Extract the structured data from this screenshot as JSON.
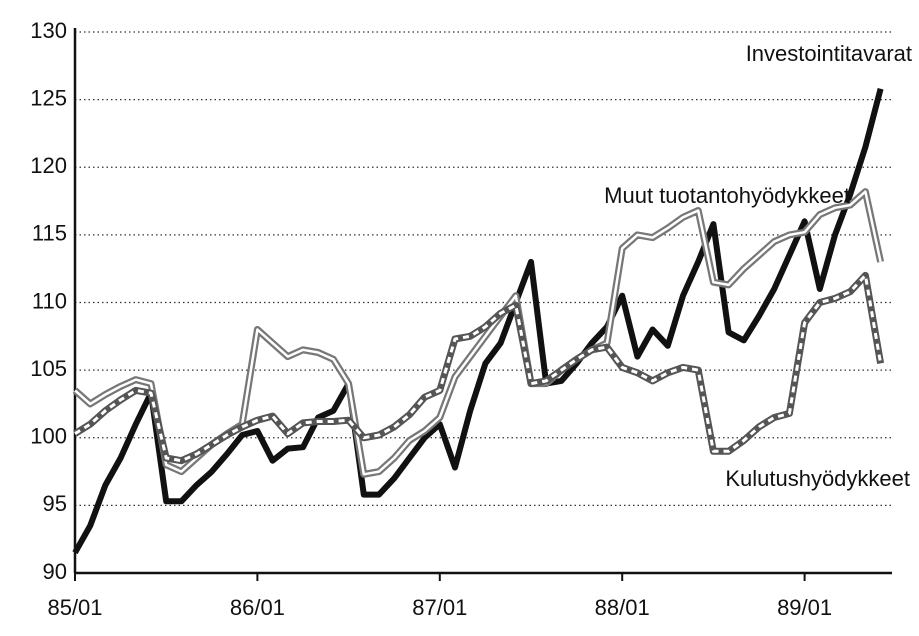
{
  "chart_data": {
    "type": "line",
    "categories": [
      "85/01",
      null,
      null,
      null,
      null,
      null,
      null,
      null,
      null,
      null,
      null,
      null,
      "86/01",
      null,
      null,
      null,
      null,
      null,
      null,
      null,
      null,
      null,
      null,
      null,
      "87/01",
      null,
      null,
      null,
      null,
      null,
      null,
      null,
      null,
      null,
      null,
      null,
      "88/01",
      null,
      null,
      null,
      null,
      null,
      null,
      null,
      null,
      null,
      null,
      null,
      "89/01",
      null,
      null,
      null,
      null,
      null
    ],
    "ylim": [
      90,
      130
    ],
    "yticks": [
      90,
      95,
      100,
      105,
      110,
      115,
      120,
      125,
      130
    ],
    "grid": true,
    "series": [
      {
        "name": "Investointitavarat",
        "color": "#111111",
        "style": "solid",
        "values": [
          91.5,
          93.5,
          96.5,
          98.5,
          101,
          103.3,
          95.3,
          95.3,
          96.5,
          97.5,
          98.8,
          100.2,
          100.5,
          98.3,
          99.2,
          99.3,
          101.5,
          102,
          104,
          95.8,
          95.8,
          97,
          98.5,
          100,
          101,
          97.8,
          102,
          105.5,
          107,
          110,
          113,
          104,
          104.2,
          105.5,
          107,
          108.2,
          110.5,
          106,
          108,
          106.8,
          110.5,
          113,
          115.8,
          107.8,
          107.2,
          109,
          111,
          113.5,
          116,
          111,
          115,
          118,
          121.5,
          125.8
        ]
      },
      {
        "name": "Muut tuotantohyödykkeet",
        "color": "#777777",
        "style": "double",
        "values": [
          103.5,
          102.5,
          103.2,
          103.8,
          104.3,
          104,
          98,
          97.5,
          98.5,
          99.5,
          100.3,
          101,
          108,
          107,
          106,
          106.5,
          106.3,
          105.8,
          104,
          97.3,
          97.5,
          98.5,
          99.8,
          100.5,
          101.5,
          104.5,
          106,
          107.5,
          109,
          110.5,
          104,
          104,
          105,
          105.8,
          106.5,
          107,
          114,
          115,
          114.8,
          115.5,
          116.3,
          116.8,
          111.5,
          111.3,
          112.5,
          113.5,
          114.5,
          115,
          115.2,
          116.5,
          117,
          117.2,
          118.2,
          113
        ]
      },
      {
        "name": "Kulutushyödykkeet",
        "color": "#555555",
        "style": "dashed",
        "values": [
          100.3,
          101,
          102,
          102.8,
          103.5,
          103.3,
          98.5,
          98.3,
          98.8,
          99.5,
          100.2,
          100.8,
          101.3,
          101.6,
          100.3,
          101.1,
          101.2,
          101.2,
          101.3,
          100,
          100.2,
          100.8,
          101.7,
          103,
          103.5,
          107.3,
          107.5,
          108.2,
          109.2,
          109.8,
          104,
          104.2,
          105,
          105.8,
          106.5,
          106.7,
          105.2,
          104.8,
          104.2,
          104.8,
          105.2,
          105,
          99,
          99,
          99.8,
          100.8,
          101.5,
          101.8,
          108.5,
          110,
          110.3,
          110.8,
          112,
          105.5
        ]
      }
    ]
  }
}
